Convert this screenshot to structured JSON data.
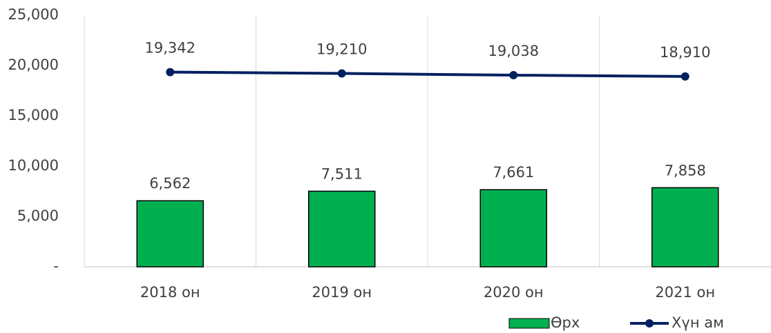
{
  "chart_data": {
    "type": "bar",
    "categories": [
      "2018 он",
      "2019 он",
      "2020 он",
      "2021 он"
    ],
    "series": [
      {
        "name": "Өрх",
        "type": "bar",
        "color": "#00b050",
        "values": [
          6562,
          7511,
          7661,
          7858
        ],
        "value_labels": [
          "6,562",
          "7,511",
          "7,661",
          "7,858"
        ]
      },
      {
        "name": "Хүн ам",
        "type": "line",
        "color": "#002060",
        "values": [
          19342,
          19210,
          19038,
          18910
        ],
        "value_labels": [
          "19,342",
          "19,210",
          "19,038",
          "18,910"
        ]
      }
    ],
    "ylim": [
      0,
      25000
    ],
    "yticks": [
      {
        "value": 0,
        "label": "-"
      },
      {
        "value": 5000,
        "label": "5,000"
      },
      {
        "value": 10000,
        "label": "10,000"
      },
      {
        "value": 15000,
        "label": "15,000"
      },
      {
        "value": 20000,
        "label": "20,000"
      },
      {
        "value": 25000,
        "label": "25,000"
      }
    ],
    "grid": "x",
    "legend": "bottom-right"
  }
}
